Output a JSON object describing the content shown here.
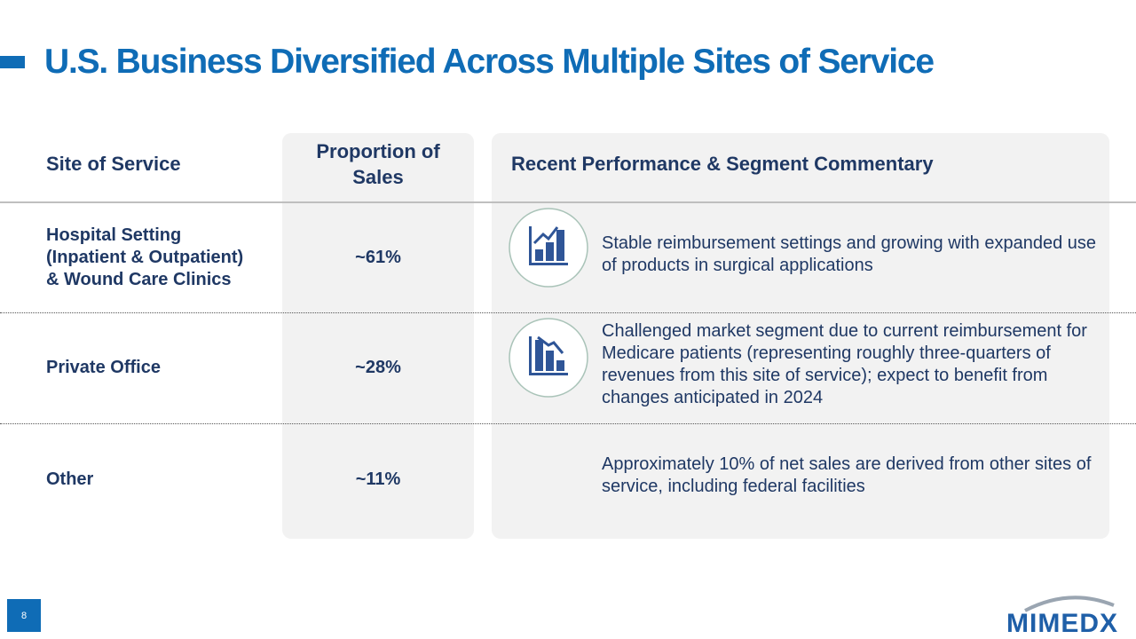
{
  "header": {
    "title": "U.S. Business Diversified Across Multiple Sites of Service"
  },
  "table": {
    "headers": [
      "Site of Service",
      "Proportion of Sales",
      "Recent Performance & Segment Commentary"
    ],
    "rows": [
      {
        "site": [
          "Hospital Setting",
          "(Inpatient & Outpatient)",
          "& Wound Care Clinics"
        ],
        "proportion": "~61%",
        "commentary": "Stable reimbursement settings and growing with expanded use of products in surgical applications"
      },
      {
        "site": [
          "Private Office"
        ],
        "proportion": "~28%",
        "commentary": "Challenged market segment due to current reimbursement for Medicare patients (representing roughly three-quarters of revenues from this site of service); expect to benefit from changes anticipated in 2024"
      },
      {
        "site": [
          "Other"
        ],
        "proportion": "~11%",
        "commentary": "Approximately 10% of net sales are derived from other sites of service, including federal facilities"
      }
    ]
  },
  "footer": {
    "page": "8",
    "logo": "MIMEDX"
  }
}
